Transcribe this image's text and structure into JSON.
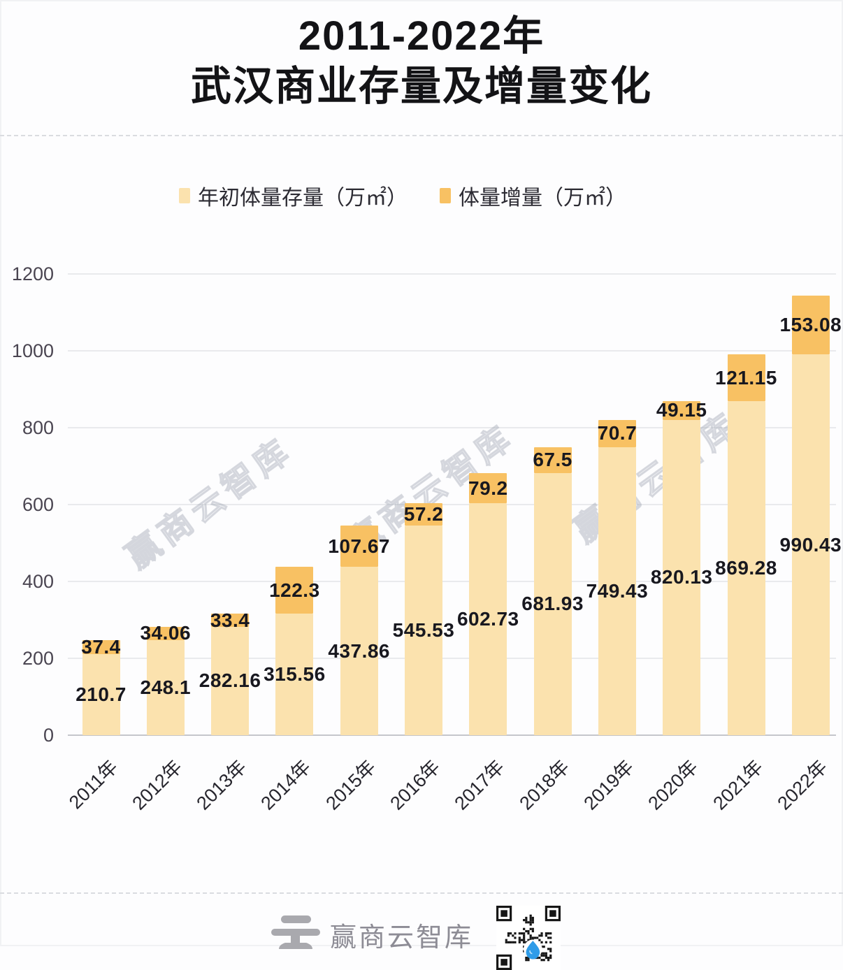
{
  "title": {
    "line1": "2011-2022年",
    "line2": "武汉商业存量及增量变化"
  },
  "legend": [
    {
      "label": "年初体量存量（万㎡）",
      "color": "#fbe2ae"
    },
    {
      "label": "体量增量（万㎡）",
      "color": "#f8c163"
    }
  ],
  "chart_data": {
    "type": "bar",
    "stacked": true,
    "title": "2011-2022年武汉商业存量及增量变化",
    "categories": [
      "2011年",
      "2012年",
      "2013年",
      "2014年",
      "2015年",
      "2016年",
      "2017年",
      "2018年",
      "2019年",
      "2020年",
      "2021年",
      "2022年"
    ],
    "series": [
      {
        "name": "年初体量存量（万㎡）",
        "color": "#fbe2ae",
        "values": [
          210.7,
          248.1,
          282.16,
          315.56,
          437.86,
          545.53,
          602.73,
          681.93,
          749.43,
          820.13,
          869.28,
          990.43
        ]
      },
      {
        "name": "体量增量（万㎡）",
        "color": "#f8c163",
        "values": [
          37.4,
          34.06,
          33.4,
          122.3,
          107.67,
          57.2,
          79.2,
          67.5,
          70.7,
          49.15,
          121.15,
          153.08
        ]
      }
    ],
    "ylabel": "",
    "xlabel": "",
    "ylim": [
      0,
      1200
    ],
    "yticks": [
      0,
      200,
      400,
      600,
      800,
      1000,
      1200
    ],
    "grid": true,
    "legend_position": "top",
    "value_labels": "centered-on-segment"
  },
  "watermark": {
    "text": "赢商云智库"
  },
  "footer": {
    "brand": "赢商云智库"
  }
}
